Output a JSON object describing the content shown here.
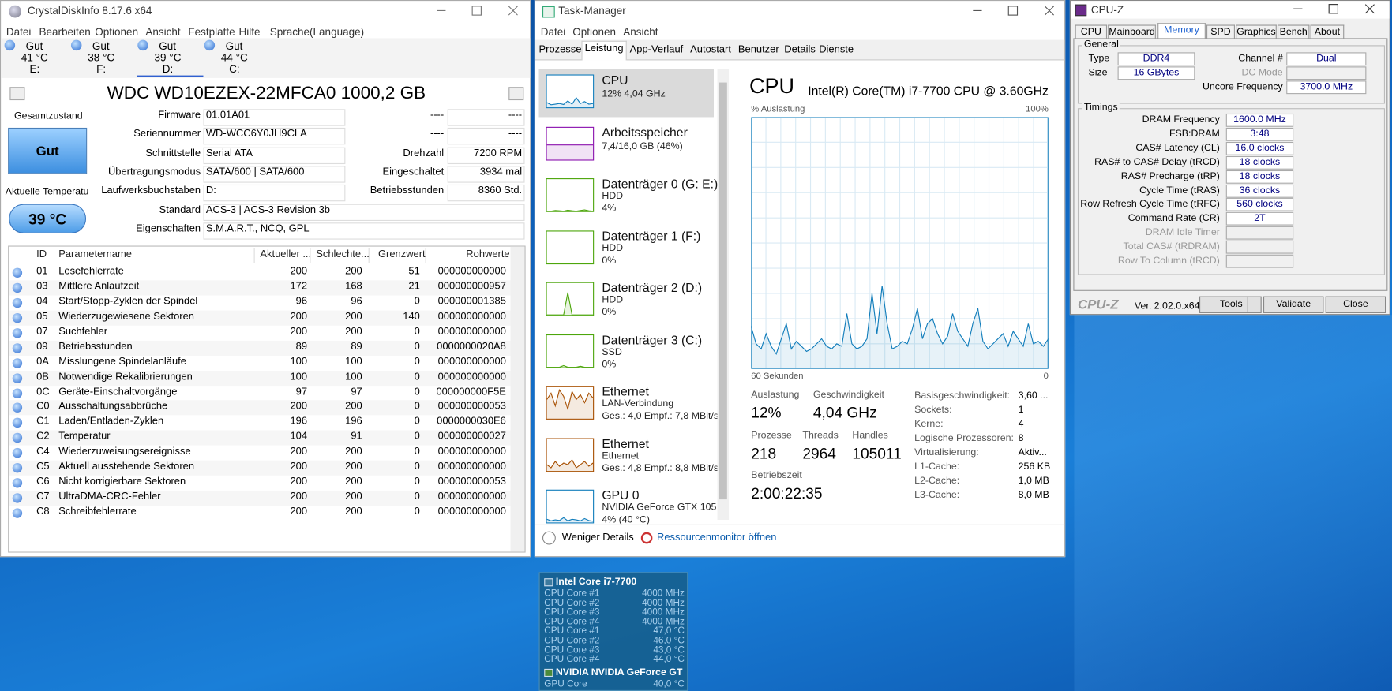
{
  "crystaldiskinfo": {
    "title": "CrystalDiskInfo 8.17.6 x64",
    "menu": [
      "Datei",
      "Bearbeiten",
      "Optionen",
      "Ansicht",
      "Festplatte",
      "Hilfe",
      "Sprache(Language)"
    ],
    "drives": [
      {
        "status": "Gut",
        "temp": "41 °C",
        "letter": "E:"
      },
      {
        "status": "Gut",
        "temp": "38 °C",
        "letter": "F:"
      },
      {
        "status": "Gut",
        "temp": "39 °C",
        "letter": "D:"
      },
      {
        "status": "Gut",
        "temp": "44 °C",
        "letter": "C:"
      }
    ],
    "selected_drive": 2,
    "model": "WDC WD10EZEX-22MFCA0 1000,2 GB",
    "health_label": "Gesamtzustand",
    "health": "Gut",
    "temp_label": "Aktuelle Temperatu",
    "temp": "39 °C",
    "fields": [
      {
        "label": "Firmware",
        "value": "01.01A01"
      },
      {
        "label": "Seriennummer",
        "value": "WD-WCC6Y0JH9CLA"
      },
      {
        "label": "Schnittstelle",
        "value": "Serial ATA"
      },
      {
        "label": "Übertragungsmodus",
        "value": "SATA/600 | SATA/600"
      },
      {
        "label": "Laufwerksbuchstaben",
        "value": "D:"
      },
      {
        "label": "Standard",
        "value": "ACS-3 | ACS-3 Revision 3b"
      },
      {
        "label": "Eigenschaften",
        "value": "S.M.A.R.T., NCQ, GPL"
      }
    ],
    "right_fields": [
      {
        "label": "----",
        "value": "----"
      },
      {
        "label": "----",
        "value": "----"
      },
      {
        "label": "Drehzahl",
        "value": "7200 RPM"
      },
      {
        "label": "Eingeschaltet",
        "value": "3934 mal"
      },
      {
        "label": "Betriebsstunden",
        "value": "8360 Std."
      }
    ],
    "table": {
      "header": [
        "ID",
        "Parametername",
        "Aktueller ...",
        "Schlechte...",
        "Grenzwert",
        "Rohwerte"
      ],
      "rows": [
        [
          "01",
          "Lesefehlerrate",
          "200",
          "200",
          "51",
          "000000000000"
        ],
        [
          "03",
          "Mittlere Anlaufzeit",
          "172",
          "168",
          "21",
          "000000000957"
        ],
        [
          "04",
          "Start/Stopp-Zyklen der Spindel",
          "96",
          "96",
          "0",
          "000000001385"
        ],
        [
          "05",
          "Wiederzugewiesene Sektoren",
          "200",
          "200",
          "140",
          "000000000000"
        ],
        [
          "07",
          "Suchfehler",
          "200",
          "200",
          "0",
          "000000000000"
        ],
        [
          "09",
          "Betriebsstunden",
          "89",
          "89",
          "0",
          "0000000020A8"
        ],
        [
          "0A",
          "Misslungene Spindelanläufe",
          "100",
          "100",
          "0",
          "000000000000"
        ],
        [
          "0B",
          "Notwendige Rekalibrierungen",
          "100",
          "100",
          "0",
          "000000000000"
        ],
        [
          "0C",
          "Geräte-Einschaltvorgänge",
          "97",
          "97",
          "0",
          "000000000F5E"
        ],
        [
          "C0",
          "Ausschaltungsabbrüche",
          "200",
          "200",
          "0",
          "000000000053"
        ],
        [
          "C1",
          "Laden/Entladen-Zyklen",
          "196",
          "196",
          "0",
          "0000000030E6"
        ],
        [
          "C2",
          "Temperatur",
          "104",
          "91",
          "0",
          "000000000027"
        ],
        [
          "C4",
          "Wiederzuweisungsereignisse",
          "200",
          "200",
          "0",
          "000000000000"
        ],
        [
          "C5",
          "Aktuell ausstehende Sektoren",
          "200",
          "200",
          "0",
          "000000000000"
        ],
        [
          "C6",
          "Nicht korrigierbare Sektoren",
          "200",
          "200",
          "0",
          "000000000053"
        ],
        [
          "C7",
          "UltraDMA-CRC-Fehler",
          "200",
          "200",
          "0",
          "000000000000"
        ],
        [
          "C8",
          "Schreibfehlerrate",
          "200",
          "200",
          "0",
          "000000000000"
        ]
      ]
    }
  },
  "task_manager": {
    "title": "Task-Manager",
    "menu": [
      "Datei",
      "Optionen",
      "Ansicht"
    ],
    "tabs": [
      "Prozesse",
      "Leistung",
      "App-Verlauf",
      "Autostart",
      "Benutzer",
      "Details",
      "Dienste"
    ],
    "active_tab": 1,
    "selected_item": 0,
    "graph_ylim": [
      0,
      100
    ],
    "items": [
      {
        "name": "CPU",
        "lines": [
          "12% 4,04 GHz"
        ],
        "color": "#117dbb",
        "graph": [
          15,
          8,
          10,
          12,
          9,
          20,
          10,
          30,
          12,
          18,
          10,
          12
        ]
      },
      {
        "name": "Arbeitsspeicher",
        "lines": [
          "7,4/16,0 GB (46%)"
        ],
        "color": "#8b12ae",
        "graph": [
          46,
          46,
          46,
          46,
          46,
          46,
          46,
          46,
          46,
          46,
          46,
          46
        ]
      },
      {
        "name": "Datenträger 0 (G: E:)",
        "lines": [
          "HDD",
          "4%"
        ],
        "color": "#4da60c",
        "graph": [
          0,
          0,
          2,
          1,
          0,
          3,
          1,
          0,
          2,
          4,
          1,
          0
        ]
      },
      {
        "name": "Datenträger 1 (F:)",
        "lines": [
          "HDD",
          "0%"
        ],
        "color": "#4da60c",
        "graph": [
          0,
          0,
          0,
          0,
          0,
          0,
          0,
          0,
          0,
          0,
          0,
          0
        ]
      },
      {
        "name": "Datenträger 2 (D:)",
        "lines": [
          "HDD",
          "0%"
        ],
        "color": "#4da60c",
        "graph": [
          0,
          0,
          0,
          0,
          0,
          70,
          0,
          0,
          0,
          0,
          0,
          0
        ]
      },
      {
        "name": "Datenträger 3 (C:)",
        "lines": [
          "SSD",
          "0%"
        ],
        "color": "#4da60c",
        "graph": [
          0,
          0,
          0,
          0,
          5,
          0,
          0,
          0,
          3,
          0,
          0,
          0
        ]
      },
      {
        "name": "Ethernet",
        "lines": [
          "LAN-Verbindung",
          "Ges.: 4,0 Empf.: 7,8 MBit/s"
        ],
        "color": "#a74f01",
        "graph": [
          60,
          80,
          40,
          90,
          70,
          30,
          85,
          60,
          75,
          50,
          80,
          65
        ]
      },
      {
        "name": "Ethernet",
        "lines": [
          "Ethernet",
          "Ges.: 4,8 Empf.: 8,8 MBit/s"
        ],
        "color": "#a74f01",
        "graph": [
          20,
          10,
          30,
          15,
          25,
          20,
          35,
          10,
          20,
          30,
          15,
          25
        ]
      },
      {
        "name": "GPU 0",
        "lines": [
          "NVIDIA GeForce GTX 105...",
          "4% (40 °C)"
        ],
        "color": "#117dbb",
        "graph": [
          10,
          5,
          8,
          6,
          15,
          5,
          10,
          8,
          5,
          12,
          6,
          4
        ]
      }
    ],
    "heading": "CPU",
    "model": "Intel(R) Core(TM) i7-7700 CPU @ 3.60GHz",
    "y_label": "% Auslastung",
    "y_max_label": "100%",
    "x_label": "60 Sekunden",
    "x_min_label": "0",
    "cpu_graph": {
      "ylim": [
        0,
        100
      ],
      "color": "#117dbb",
      "values": [
        17,
        10,
        8,
        14,
        9,
        6,
        12,
        18,
        8,
        11,
        9,
        7,
        8,
        10,
        12,
        9,
        8,
        10,
        9,
        22,
        10,
        8,
        9,
        12,
        30,
        14,
        33,
        18,
        8,
        9,
        11,
        10,
        16,
        24,
        12,
        18,
        20,
        14,
        10,
        13,
        22,
        15,
        12,
        9,
        18,
        24,
        11,
        8,
        10,
        12,
        14,
        9,
        15,
        12,
        9,
        18,
        10,
        11,
        9,
        12
      ]
    },
    "stats": [
      {
        "label": "Auslastung",
        "value": "12%"
      },
      {
        "label": "Geschwindigkeit",
        "value": "4,04 GHz"
      },
      {
        "label": "Prozesse",
        "value": "218"
      },
      {
        "label": "Threads",
        "value": "2964"
      },
      {
        "label": "Handles",
        "value": "105011"
      },
      {
        "label": "Betriebszeit",
        "value": "2:00:22:35"
      }
    ],
    "details": [
      {
        "label": "Basisgeschwindigkeit:",
        "value": "3,60 ..."
      },
      {
        "label": "Sockets:",
        "value": "1"
      },
      {
        "label": "Kerne:",
        "value": "4"
      },
      {
        "label": "Logische Prozessoren:",
        "value": "8"
      },
      {
        "label": "Virtualisierung:",
        "value": "Aktiv..."
      },
      {
        "label": "L1-Cache:",
        "value": "256 KB"
      },
      {
        "label": "L2-Cache:",
        "value": "1,0 MB"
      },
      {
        "label": "L3-Cache:",
        "value": "8,0 MB"
      }
    ],
    "fewer_details": "Weniger Details",
    "resource_monitor": "Ressourcenmonitor öffnen"
  },
  "cpuz": {
    "title": "CPU-Z",
    "tabs": [
      "CPU",
      "Mainboard",
      "Memory",
      "SPD",
      "Graphics",
      "Bench",
      "About"
    ],
    "active_tab": 2,
    "general_title": "General",
    "general_left": [
      {
        "label": "Type",
        "value": "DDR4"
      },
      {
        "label": "Size",
        "value": "16 GBytes"
      }
    ],
    "general_right": [
      {
        "label": "Channel #",
        "value": "Dual"
      },
      {
        "label": "DC Mode"
      },
      {
        "label": "Uncore Frequency",
        "value": "3700.0 MHz"
      }
    ],
    "timings_title": "Timings",
    "timings": [
      {
        "label": "DRAM Frequency",
        "value": "1600.0 MHz"
      },
      {
        "label": "FSB:DRAM",
        "value": "3:48"
      },
      {
        "label": "CAS# Latency (CL)",
        "value": "16.0 clocks"
      },
      {
        "label": "RAS# to CAS# Delay (tRCD)",
        "value": "18 clocks"
      },
      {
        "label": "RAS# Precharge (tRP)",
        "value": "18 clocks"
      },
      {
        "label": "Cycle Time (tRAS)",
        "value": "36 clocks"
      },
      {
        "label": "Row Refresh Cycle Time (tRFC)",
        "value": "560 clocks"
      },
      {
        "label": "Command Rate (CR)",
        "value": "2T"
      },
      {
        "label": "DRAM Idle Timer"
      },
      {
        "label": "Total CAS# (tRDRAM)"
      },
      {
        "label": "Row To Column (tRCD)"
      }
    ],
    "brand": "CPU-Z",
    "version": "Ver. 2.02.0.x64",
    "buttons": [
      "Tools",
      "Validate",
      "Close"
    ]
  },
  "hwinfo": {
    "title": "Intel Core i7-7700",
    "rows": [
      {
        "label": "CPU Core #1",
        "value": "4000 MHz"
      },
      {
        "label": "CPU Core #2",
        "value": "4000 MHz"
      },
      {
        "label": "CPU Core #3",
        "value": "4000 MHz"
      },
      {
        "label": "CPU Core #4",
        "value": "4000 MHz"
      },
      {
        "label": "CPU Core #1",
        "value": "47,0 °C"
      },
      {
        "label": "CPU Core #2",
        "value": "46,0 °C"
      },
      {
        "label": "CPU Core #3",
        "value": "43,0 °C"
      },
      {
        "label": "CPU Core #4",
        "value": "44,0 °C"
      }
    ],
    "gpu_title": "NVIDIA NVIDIA GeForce GT",
    "gpu_rows": [
      {
        "label": "GPU Core",
        "value": "40,0 °C"
      }
    ]
  }
}
